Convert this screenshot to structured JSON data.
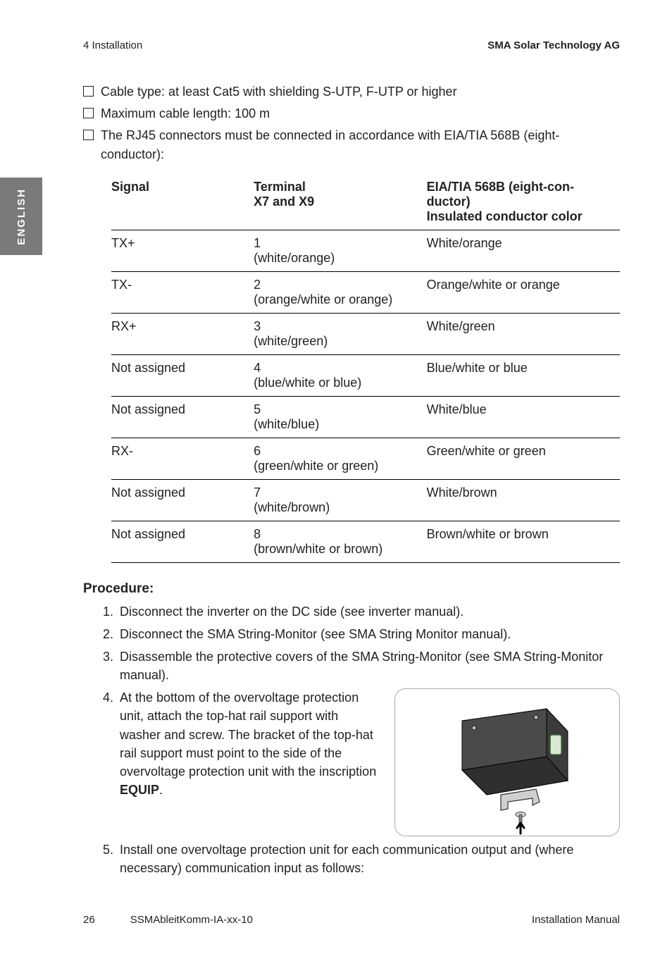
{
  "header": {
    "section": "4  Installation",
    "company": "SMA Solar Technology AG"
  },
  "sidetab": {
    "label": "ENGLISH"
  },
  "checklist": [
    "Cable type: at least Cat5 with shielding S-UTP, F-UTP or higher",
    "Maximum cable length: 100 m",
    "The RJ45 connectors must be connected in accordance with EIA/TIA 568B (eight-conductor):"
  ],
  "pinout": {
    "headers": {
      "signal": "Signal",
      "terminal_line1": "Terminal",
      "terminal_line2": "X7 and X9",
      "eia_line1": "EIA/TIA 568B (eight-con-",
      "eia_line2": "ductor)",
      "eia_line3": "Insulated conductor color"
    },
    "rows": [
      {
        "signal": "TX+",
        "term_num": "1",
        "term_paren": "(white/orange)",
        "eia": "White/orange"
      },
      {
        "signal": "TX-",
        "term_num": "2",
        "term_paren": "(orange/white or orange)",
        "eia": "Orange/white or orange"
      },
      {
        "signal": "RX+",
        "term_num": "3",
        "term_paren": "(white/green)",
        "eia": "White/green"
      },
      {
        "signal": "Not assigned",
        "term_num": "4",
        "term_paren": "(blue/white or blue)",
        "eia": "Blue/white or blue"
      },
      {
        "signal": "Not assigned",
        "term_num": "5",
        "term_paren": "(white/blue)",
        "eia": "White/blue"
      },
      {
        "signal": "RX-",
        "term_num": "6",
        "term_paren": "(green/white or green)",
        "eia": "Green/white or green"
      },
      {
        "signal": "Not assigned",
        "term_num": "7",
        "term_paren": "(white/brown)",
        "eia": "White/brown"
      },
      {
        "signal": "Not assigned",
        "term_num": "8",
        "term_paren": "(brown/white or brown)",
        "eia": "Brown/white or brown"
      }
    ]
  },
  "procedure": {
    "title": "Procedure:",
    "steps": [
      "Disconnect the inverter on the DC side (see inverter manual).",
      "Disconnect the SMA String-Monitor (see SMA String Monitor manual).",
      "Disassemble the protective covers of the SMA String-Monitor (see SMA String-Monitor manual).",
      "",
      "Install one overvoltage protection unit for each communication output and (where necessary) communication input as follows:"
    ],
    "step4_pre": "At the bottom of the overvoltage protection unit, attach the top-hat rail support with washer and screw. The bracket of the top-hat rail support must point to the side of the overvoltage protection unit with the inscription ",
    "step4_bold": "EQUIP",
    "step4_post": "."
  },
  "illustration": {
    "box": {
      "fill": "#4a4a4a",
      "edge": "#000000"
    },
    "bracket": {
      "fill": "#cfcfcf",
      "edge": "#333333"
    },
    "arrow": "#000000",
    "clip": {
      "fill": "#d9e8d0",
      "edge": "#3d6b3d"
    }
  },
  "footer": {
    "page": "26",
    "doc": "SSMAbleitKomm-IA-xx-10",
    "type": "Installation Manual"
  }
}
